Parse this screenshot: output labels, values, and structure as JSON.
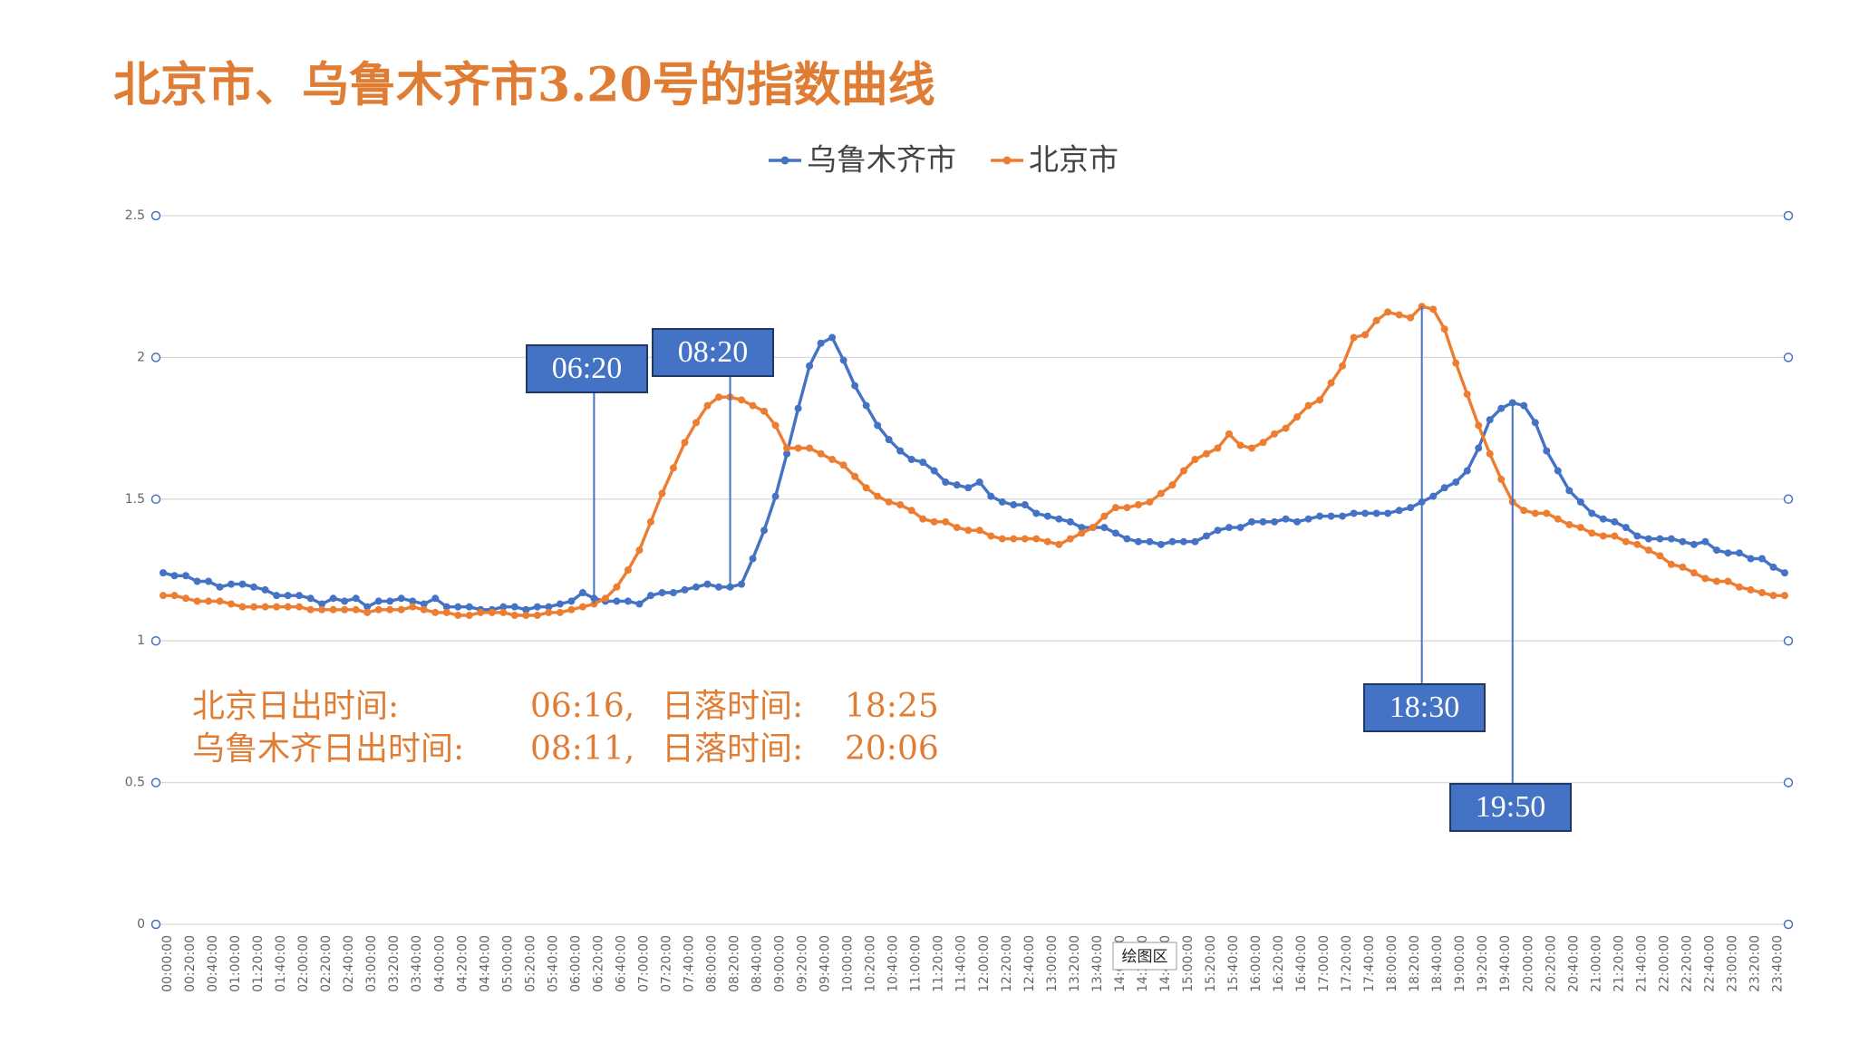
{
  "chart_data": {
    "type": "line",
    "title": "北京市、乌鲁木齐市3.20号的指数曲线",
    "categories": [
      "00:00:00",
      null,
      "00:20:00",
      null,
      "00:40:00",
      null,
      "01:00:00",
      null,
      "01:20:00",
      null,
      "01:40:00",
      null,
      "02:00:00",
      null,
      "02:20:00",
      null,
      "02:40:00",
      null,
      "03:00:00",
      null,
      "03:20:00",
      null,
      "03:40:00",
      null,
      "04:00:00",
      null,
      "04:20:00",
      null,
      "04:40:00",
      null,
      "05:00:00",
      null,
      "05:20:00",
      null,
      "05:40:00",
      null,
      "06:00:00",
      null,
      "06:20:00",
      null,
      "06:40:00",
      null,
      "07:00:00",
      null,
      "07:20:00",
      null,
      "07:40:00",
      null,
      "08:00:00",
      null,
      "08:20:00",
      null,
      "08:40:00",
      null,
      "09:00:00",
      null,
      "09:20:00",
      null,
      "09:40:00",
      null,
      "10:00:00",
      null,
      "10:20:00",
      null,
      "10:40:00",
      null,
      "11:00:00",
      null,
      "11:20:00",
      null,
      "11:40:00",
      null,
      "12:00:00",
      null,
      "12:20:00",
      null,
      "12:40:00",
      null,
      "13:00:00",
      null,
      "13:20:00",
      null,
      "13:40:00",
      null,
      "14:00:00",
      null,
      "14:20:00",
      null,
      "14:40:00",
      null,
      "15:00:00",
      null,
      "15:20:00",
      null,
      "15:40:00",
      null,
      "16:00:00",
      null,
      "16:20:00",
      null,
      "16:40:00",
      null,
      "17:00:00",
      null,
      "17:20:00",
      null,
      "17:40:00",
      null,
      "18:00:00",
      null,
      "18:20:00",
      null,
      "18:40:00",
      null,
      "19:00:00",
      null,
      "19:20:00",
      null,
      "19:40:00",
      null,
      "20:00:00",
      null,
      "20:20:00",
      null,
      "20:40:00",
      null,
      "21:00:00",
      null,
      "21:20:00",
      null,
      "21:40:00",
      null,
      "22:00:00",
      null,
      "22:20:00",
      null,
      "22:40:00",
      null,
      "23:00:00",
      null,
      "23:20:00",
      null,
      "23:40:00",
      null
    ],
    "series": [
      {
        "name": "乌鲁木齐市",
        "color": "#4472c4",
        "values": [
          1.24,
          1.23,
          1.23,
          1.21,
          1.21,
          1.19,
          1.2,
          1.2,
          1.19,
          1.18,
          1.16,
          1.16,
          1.16,
          1.15,
          1.13,
          1.15,
          1.14,
          1.15,
          1.12,
          1.14,
          1.14,
          1.15,
          1.14,
          1.13,
          1.15,
          1.12,
          1.12,
          1.12,
          1.11,
          1.11,
          1.12,
          1.12,
          1.11,
          1.12,
          1.12,
          1.13,
          1.14,
          1.17,
          1.15,
          1.14,
          1.14,
          1.14,
          1.13,
          1.16,
          1.17,
          1.17,
          1.18,
          1.19,
          1.2,
          1.19,
          1.19,
          1.2,
          1.29,
          1.39,
          1.51,
          1.66,
          1.82,
          1.97,
          2.05,
          2.07,
          1.99,
          1.9,
          1.83,
          1.76,
          1.71,
          1.67,
          1.64,
          1.63,
          1.6,
          1.56,
          1.55,
          1.54,
          1.56,
          1.51,
          1.49,
          1.48,
          1.48,
          1.45,
          1.44,
          1.43,
          1.42,
          1.4,
          1.4,
          1.4,
          1.38,
          1.36,
          1.35,
          1.35,
          1.34,
          1.35,
          1.35,
          1.35,
          1.37,
          1.39,
          1.4,
          1.4,
          1.42,
          1.42,
          1.42,
          1.43,
          1.42,
          1.43,
          1.44,
          1.44,
          1.44,
          1.45,
          1.45,
          1.45,
          1.45,
          1.46,
          1.47,
          1.49,
          1.51,
          1.54,
          1.56,
          1.6,
          1.68,
          1.78,
          1.82,
          1.84,
          1.83,
          1.77,
          1.67,
          1.6,
          1.53,
          1.49,
          1.45,
          1.43,
          1.42,
          1.4,
          1.37,
          1.36,
          1.36,
          1.36,
          1.35,
          1.34,
          1.35,
          1.32,
          1.31,
          1.31,
          1.29,
          1.29,
          1.26,
          1.24
        ]
      },
      {
        "name": "北京市",
        "color": "#ed7d31",
        "values": [
          1.16,
          1.16,
          1.15,
          1.14,
          1.14,
          1.14,
          1.13,
          1.12,
          1.12,
          1.12,
          1.12,
          1.12,
          1.12,
          1.11,
          1.11,
          1.11,
          1.11,
          1.11,
          1.1,
          1.11,
          1.11,
          1.11,
          1.12,
          1.11,
          1.1,
          1.1,
          1.09,
          1.09,
          1.1,
          1.1,
          1.1,
          1.09,
          1.09,
          1.09,
          1.1,
          1.1,
          1.11,
          1.12,
          1.13,
          1.15,
          1.19,
          1.25,
          1.32,
          1.42,
          1.52,
          1.61,
          1.7,
          1.77,
          1.83,
          1.86,
          1.86,
          1.85,
          1.83,
          1.81,
          1.76,
          1.68,
          1.68,
          1.68,
          1.66,
          1.64,
          1.62,
          1.58,
          1.54,
          1.51,
          1.49,
          1.48,
          1.46,
          1.43,
          1.42,
          1.42,
          1.4,
          1.39,
          1.39,
          1.37,
          1.36,
          1.36,
          1.36,
          1.36,
          1.35,
          1.34,
          1.36,
          1.38,
          1.4,
          1.44,
          1.47,
          1.47,
          1.48,
          1.49,
          1.52,
          1.55,
          1.6,
          1.64,
          1.66,
          1.68,
          1.73,
          1.69,
          1.68,
          1.7,
          1.73,
          1.75,
          1.79,
          1.83,
          1.85,
          1.91,
          1.97,
          2.07,
          2.08,
          2.13,
          2.16,
          2.15,
          2.14,
          2.18,
          2.17,
          2.1,
          1.98,
          1.87,
          1.76,
          1.66,
          1.57,
          1.49,
          1.46,
          1.45,
          1.45,
          1.43,
          1.41,
          1.4,
          1.38,
          1.37,
          1.37,
          1.35,
          1.34,
          1.32,
          1.3,
          1.27,
          1.26,
          1.24,
          1.22,
          1.21,
          1.21,
          1.19,
          1.18,
          1.17,
          1.16,
          1.16
        ]
      }
    ],
    "ylim": [
      0,
      2.5
    ],
    "yticks": [
      0,
      0.5,
      1,
      1.5,
      2,
      2.5
    ],
    "grid": true,
    "legend": "top",
    "callouts": [
      "06:20",
      "08:20",
      "18:30",
      "19:50"
    ],
    "notes": [
      [
        "北京日出时间:",
        "06:16,",
        "日落时间:",
        "18:25"
      ],
      [
        "乌鲁木齐日出时间:",
        "08:11,",
        "日落时间:",
        "20:06"
      ]
    ],
    "tooltip": "绘图区"
  }
}
